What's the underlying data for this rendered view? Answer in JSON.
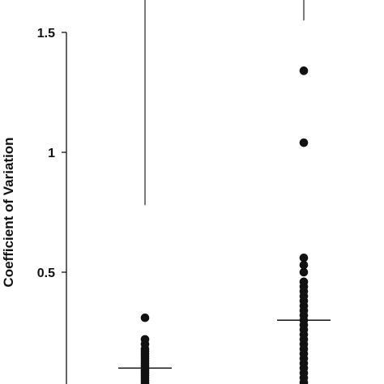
{
  "chart_data": {
    "type": "scatter",
    "title": "",
    "xlabel": "",
    "ylabel": "Coefficient of Variation",
    "ylim": [
      0,
      1.65
    ],
    "yticks": [
      {
        "value": 0.5,
        "label": "0.5"
      },
      {
        "value": 1,
        "label": "1"
      },
      {
        "value": 1.5,
        "label": "1.5"
      }
    ],
    "grid": false,
    "legend": "none",
    "groups": [
      {
        "median": 0.1,
        "whisker_top": 0.78,
        "points": [
          0.01,
          0.03,
          0.04,
          0.05,
          0.06,
          0.07,
          0.08,
          0.09,
          0.1,
          0.11,
          0.12,
          0.13,
          0.14,
          0.15,
          0.16,
          0.17,
          0.18,
          0.2,
          0.22,
          0.31
        ]
      },
      {
        "median": 0.3,
        "whisker_top": 1.55,
        "points": [
          0.01,
          0.04,
          0.06,
          0.08,
          0.1,
          0.12,
          0.14,
          0.16,
          0.18,
          0.2,
          0.22,
          0.24,
          0.26,
          0.28,
          0.3,
          0.32,
          0.34,
          0.36,
          0.38,
          0.4,
          0.42,
          0.44,
          0.46,
          0.5,
          0.53,
          0.56,
          1.04,
          1.34
        ]
      }
    ]
  }
}
